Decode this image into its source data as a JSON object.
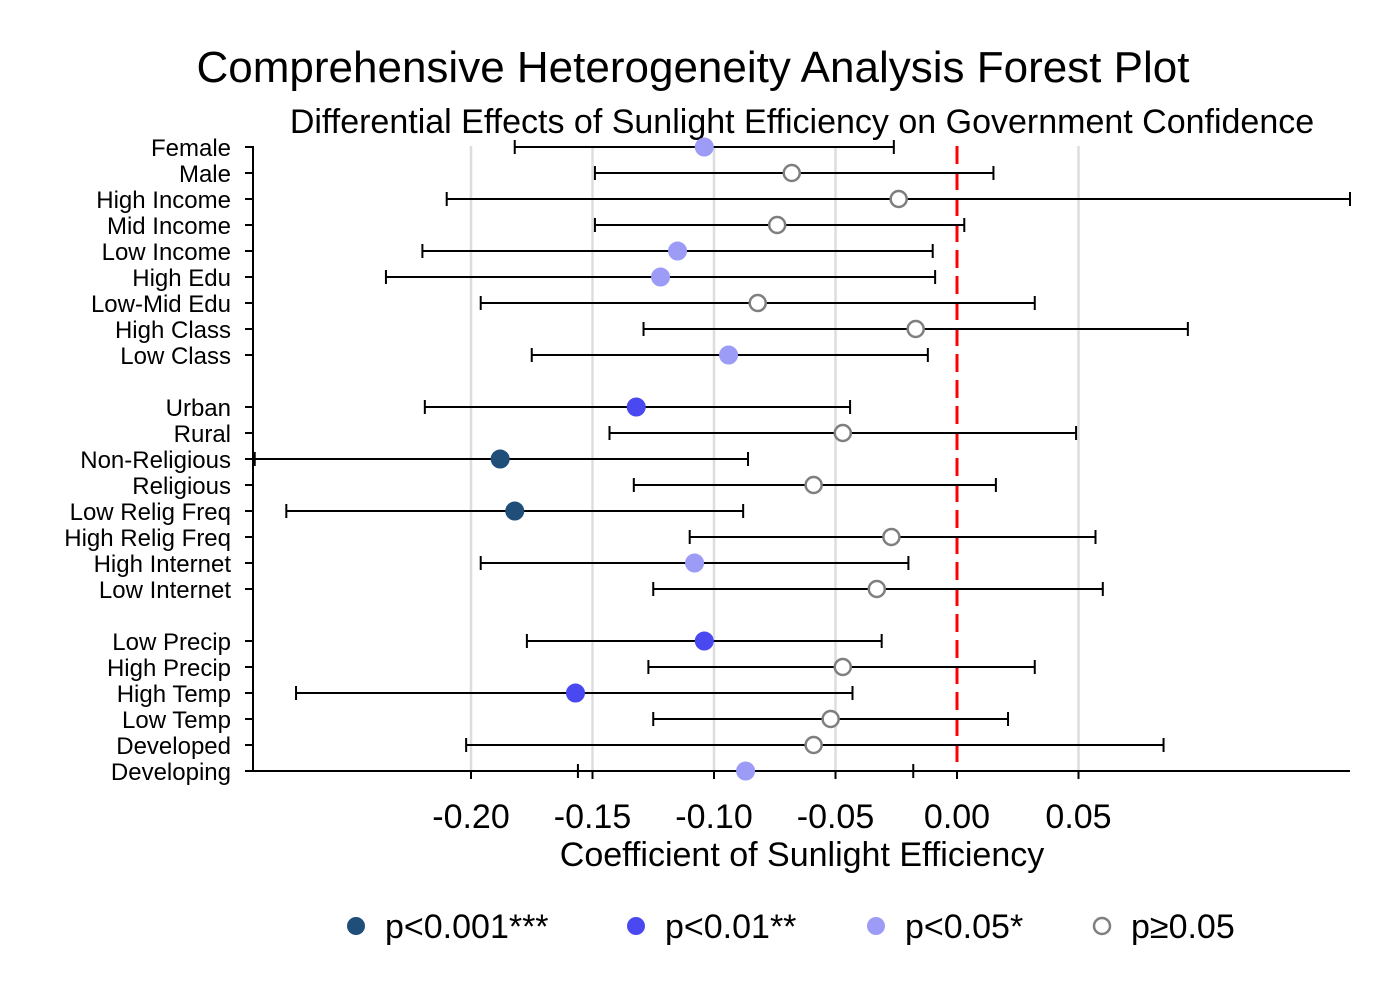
{
  "chart_data": {
    "type": "forest",
    "title": "Comprehensive Heterogeneity Analysis Forest Plot",
    "subtitle": "Differential Effects of Sunlight Efficiency on Government Confidence",
    "xlabel": "Coefficient of Sunlight Efficiency",
    "xlim": [
      -0.289,
      0.162
    ],
    "xticks": [
      -0.2,
      -0.15,
      -0.1,
      -0.05,
      0.0,
      0.05
    ],
    "xtick_labels": [
      "-0.20",
      "-0.15",
      "-0.10",
      "-0.05",
      "0.00",
      "0.05"
    ],
    "reference_line": 0.0,
    "rows": [
      {
        "label": "Female",
        "estimate": -0.104,
        "ci_low": -0.182,
        "ci_high": -0.026,
        "sig": "p05",
        "group": 1
      },
      {
        "label": "Male",
        "estimate": -0.068,
        "ci_low": -0.149,
        "ci_high": 0.015,
        "sig": "ns",
        "group": 1
      },
      {
        "label": "High Income",
        "estimate": -0.024,
        "ci_low": -0.21,
        "ci_high": 0.162,
        "sig": "ns",
        "group": 1
      },
      {
        "label": "Mid Income",
        "estimate": -0.074,
        "ci_low": -0.149,
        "ci_high": 0.003,
        "sig": "ns",
        "group": 1
      },
      {
        "label": "Low Income",
        "estimate": -0.115,
        "ci_low": -0.22,
        "ci_high": -0.01,
        "sig": "p05",
        "group": 1
      },
      {
        "label": "High Edu",
        "estimate": -0.122,
        "ci_low": -0.235,
        "ci_high": -0.009,
        "sig": "p05",
        "group": 1
      },
      {
        "label": "Low-Mid Edu",
        "estimate": -0.082,
        "ci_low": -0.196,
        "ci_high": 0.032,
        "sig": "ns",
        "group": 1
      },
      {
        "label": "High Class",
        "estimate": -0.017,
        "ci_low": -0.129,
        "ci_high": 0.095,
        "sig": "ns",
        "group": 1
      },
      {
        "label": "Low Class",
        "estimate": -0.094,
        "ci_low": -0.175,
        "ci_high": -0.012,
        "sig": "p05",
        "group": 1
      },
      {
        "label": "Urban",
        "estimate": -0.132,
        "ci_low": -0.219,
        "ci_high": -0.044,
        "sig": "p01",
        "group": 2
      },
      {
        "label": "Rural",
        "estimate": -0.047,
        "ci_low": -0.143,
        "ci_high": 0.049,
        "sig": "ns",
        "group": 2
      },
      {
        "label": "Non-Religious",
        "estimate": -0.188,
        "ci_low": -0.289,
        "ci_high": -0.086,
        "sig": "p001",
        "group": 2
      },
      {
        "label": "Religious",
        "estimate": -0.059,
        "ci_low": -0.133,
        "ci_high": 0.016,
        "sig": "ns",
        "group": 2
      },
      {
        "label": "Low Relig Freq",
        "estimate": -0.182,
        "ci_low": -0.276,
        "ci_high": -0.088,
        "sig": "p001",
        "group": 2
      },
      {
        "label": "High Relig Freq",
        "estimate": -0.027,
        "ci_low": -0.11,
        "ci_high": 0.057,
        "sig": "ns",
        "group": 2
      },
      {
        "label": "High Internet",
        "estimate": -0.108,
        "ci_low": -0.196,
        "ci_high": -0.02,
        "sig": "p05",
        "group": 2
      },
      {
        "label": "Low Internet",
        "estimate": -0.033,
        "ci_low": -0.125,
        "ci_high": 0.06,
        "sig": "ns",
        "group": 2
      },
      {
        "label": "Low Precip",
        "estimate": -0.104,
        "ci_low": -0.177,
        "ci_high": -0.031,
        "sig": "p01",
        "group": 3
      },
      {
        "label": "High Precip",
        "estimate": -0.047,
        "ci_low": -0.127,
        "ci_high": 0.032,
        "sig": "ns",
        "group": 3
      },
      {
        "label": "High Temp",
        "estimate": -0.157,
        "ci_low": -0.272,
        "ci_high": -0.043,
        "sig": "p01",
        "group": 3
      },
      {
        "label": "Low Temp",
        "estimate": -0.052,
        "ci_low": -0.125,
        "ci_high": 0.021,
        "sig": "ns",
        "group": 3
      },
      {
        "label": "Developed",
        "estimate": -0.059,
        "ci_low": -0.202,
        "ci_high": 0.085,
        "sig": "ns",
        "group": 3
      },
      {
        "label": "Developing",
        "estimate": -0.087,
        "ci_low": -0.156,
        "ci_high": -0.018,
        "sig": "p05",
        "group": 3
      }
    ],
    "legend": [
      {
        "key": "p001",
        "label": "p<0.001***",
        "color": "#1f4e79",
        "filled": true
      },
      {
        "key": "p01",
        "label": "p<0.01**",
        "color": "#4a48f0",
        "filled": true
      },
      {
        "key": "p05",
        "label": "p<0.05*",
        "color": "#9c9cf7",
        "filled": true
      },
      {
        "key": "ns",
        "label": "p≥0.05",
        "color": "#7f7f7f",
        "filled": false
      }
    ],
    "colors": {
      "reference_line": "#ff0000",
      "grid": "#dddddd",
      "ci": "#000000"
    }
  }
}
